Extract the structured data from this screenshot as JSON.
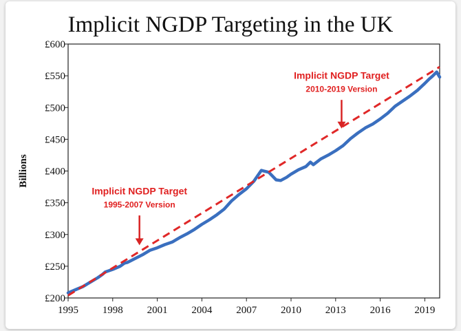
{
  "chart_data": {
    "type": "line",
    "title": "Implicit NGDP Targeting in the UK",
    "ylabel": "Billions",
    "xlabel": "",
    "xlim": [
      1995,
      2020
    ],
    "ylim": [
      200,
      600
    ],
    "xticks": [
      1995,
      1998,
      2001,
      2004,
      2007,
      2010,
      2013,
      2016,
      2019
    ],
    "xtick_labels": [
      "1995",
      "1998",
      "2001",
      "2004",
      "2007",
      "2010",
      "2013",
      "2016",
      "2019"
    ],
    "yticks": [
      200,
      250,
      300,
      350,
      400,
      450,
      500,
      550,
      600
    ],
    "ytick_labels": [
      "£200",
      "£250",
      "£300",
      "£350",
      "£400",
      "£450",
      "£500",
      "£550",
      "£600"
    ],
    "grid": false,
    "legend": false,
    "series": [
      {
        "style": "solid",
        "color": "#3a6fbf",
        "x": [
          1995,
          1995.5,
          1996,
          1996.5,
          1997,
          1997.3,
          1997.5,
          1998,
          1998.5,
          1998.8,
          1999,
          1999.5,
          2000,
          2000.5,
          2001,
          2001.5,
          2002,
          2002.5,
          2003,
          2003.5,
          2004,
          2004.5,
          2005,
          2005.5,
          2006,
          2006.5,
          2007,
          2007.5,
          2008,
          2008.5,
          2009,
          2009.3,
          2009.7,
          2010,
          2010.5,
          2011,
          2011.3,
          2011.5,
          2012,
          2012.5,
          2013,
          2013.5,
          2014,
          2014.5,
          2015,
          2015.5,
          2016,
          2016.5,
          2017,
          2017.5,
          2018,
          2018.5,
          2019,
          2019.3,
          2019.5,
          2019.8,
          2020
        ],
        "y": [
          208,
          213,
          218,
          225,
          232,
          237,
          241,
          245,
          250,
          255,
          256,
          262,
          268,
          275,
          279,
          284,
          288,
          295,
          301,
          308,
          316,
          323,
          331,
          340,
          353,
          363,
          372,
          384,
          401,
          398,
          386,
          385,
          390,
          395,
          402,
          407,
          414,
          410,
          419,
          425,
          432,
          440,
          451,
          460,
          468,
          474,
          482,
          491,
          502,
          510,
          518,
          527,
          538,
          545,
          549,
          556,
          548
        ]
      },
      {
        "style": "dashed",
        "color": "#e02828",
        "x": [
          1995,
          2020
        ],
        "y": [
          204,
          564
        ]
      }
    ],
    "annotations": [
      {
        "lines": [
          "Implicit NGDP Target",
          "1995-2007 Version"
        ],
        "text_x": 1999.8,
        "text_y": 363,
        "arrow_from": [
          1999.8,
          330
        ],
        "arrow_to": [
          1999.8,
          283
        ]
      },
      {
        "lines": [
          "Implicit NGDP Target",
          "2010-2019 Version"
        ],
        "text_x": 2013.4,
        "text_y": 545,
        "arrow_from": [
          2013.4,
          512
        ],
        "arrow_to": [
          2013.4,
          467
        ]
      }
    ]
  }
}
